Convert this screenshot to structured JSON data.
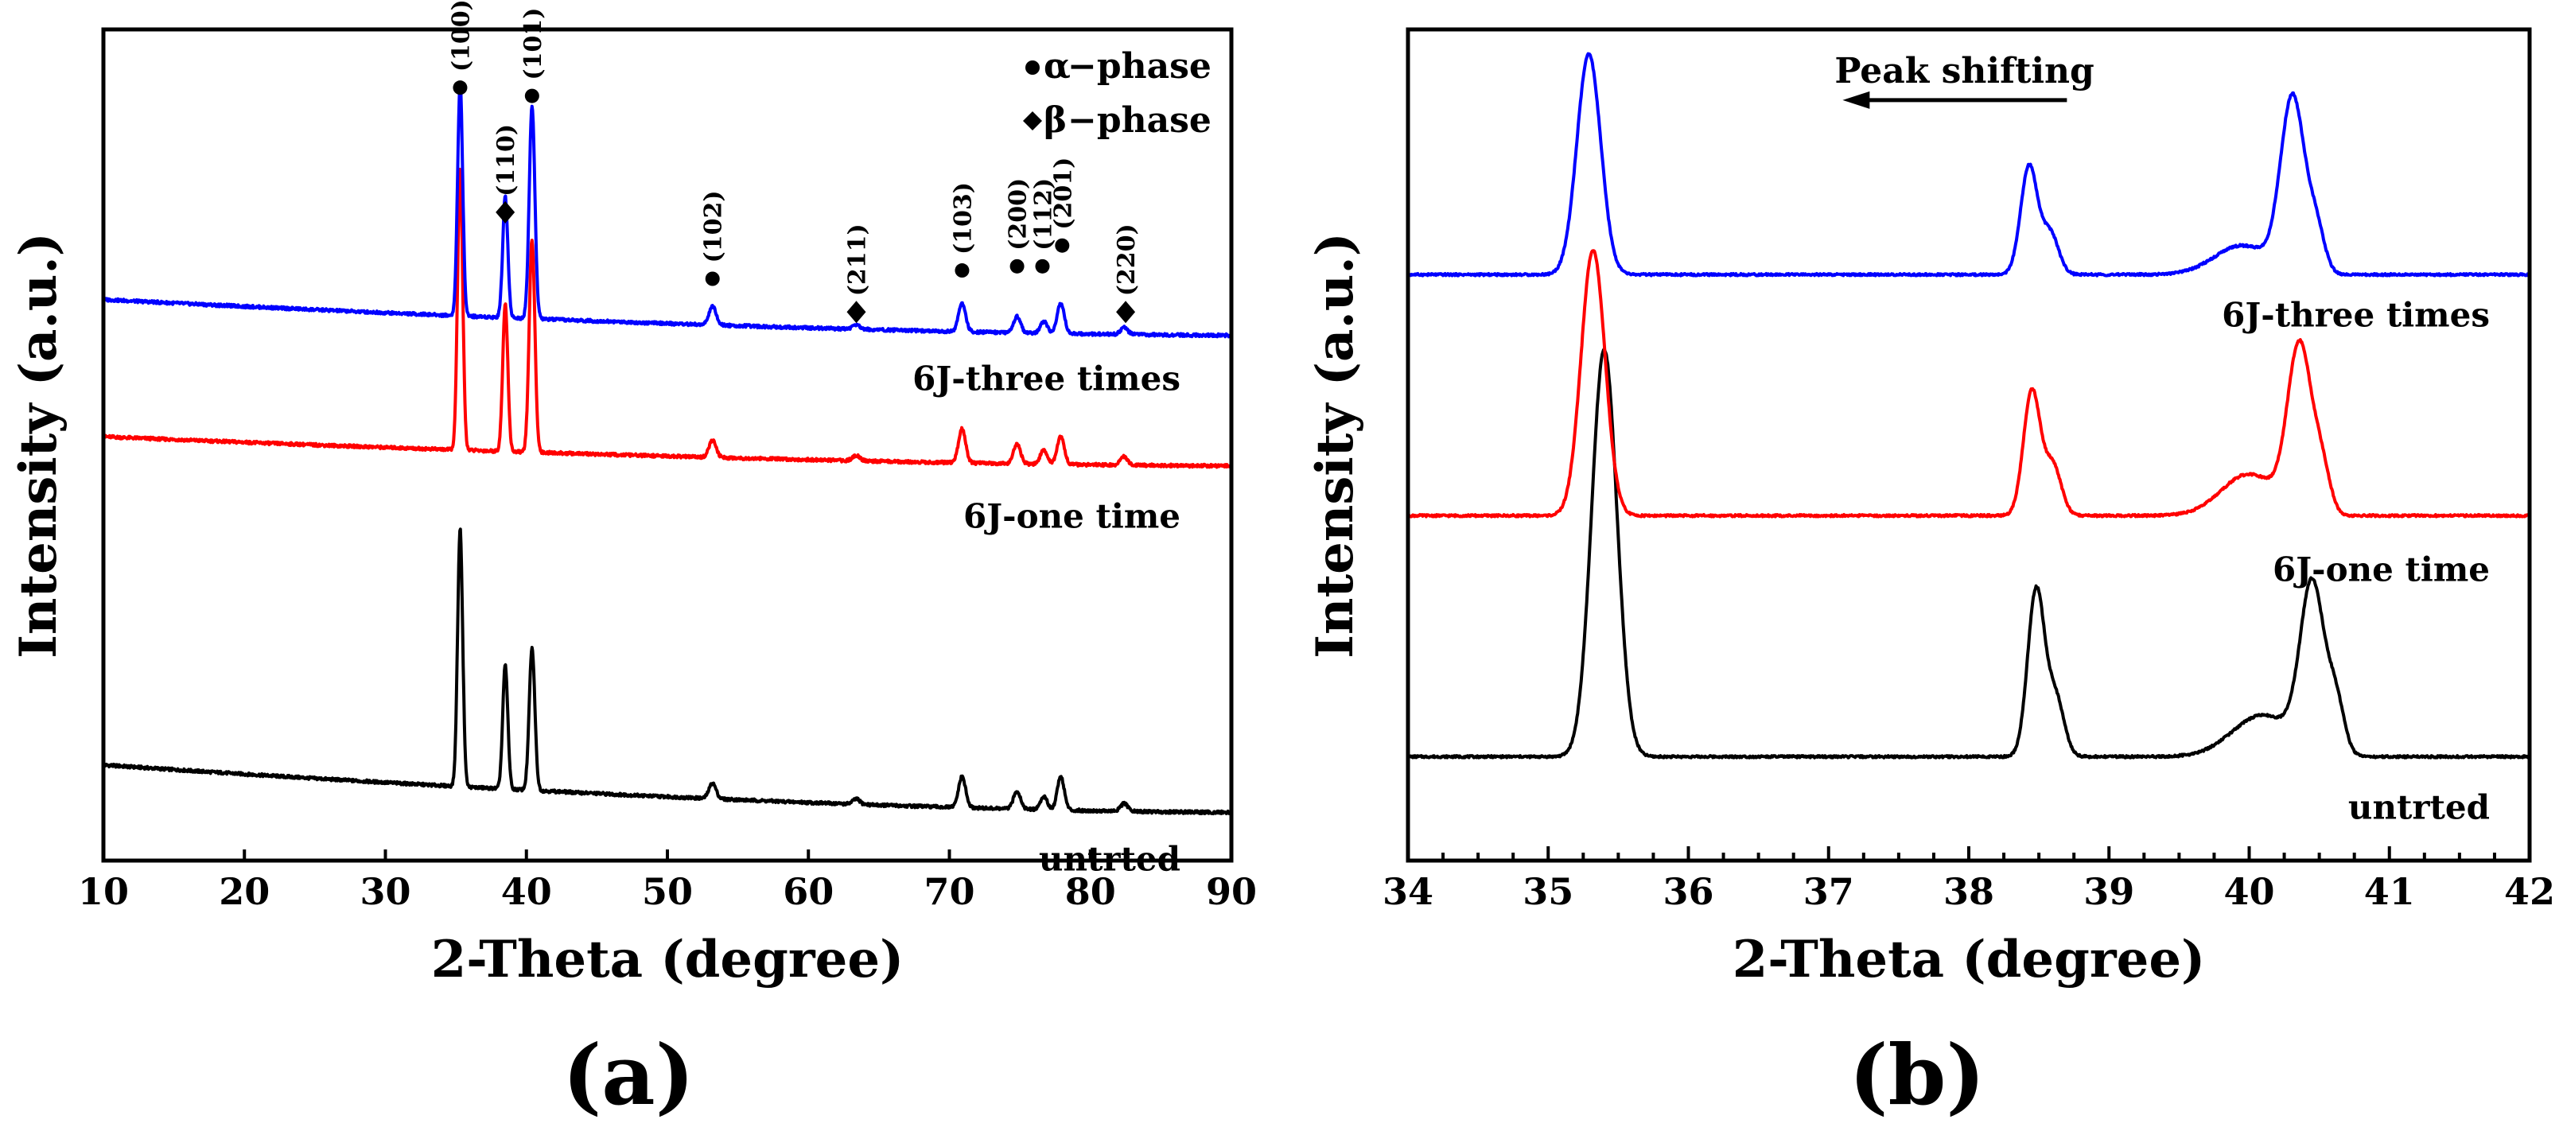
{
  "figure": {
    "panels": [
      {
        "id": "a",
        "label": "(a)"
      },
      {
        "id": "b",
        "label": "(b)"
      }
    ]
  },
  "chart_data": [
    {
      "id": "a",
      "type": "line",
      "panel_label": "(a)",
      "xlabel": "2-Theta (degree)",
      "ylabel": "Intensity (a.u.)",
      "xlim": [
        10,
        90
      ],
      "xticks": [
        10,
        20,
        30,
        40,
        50,
        60,
        70,
        80,
        90
      ],
      "ylim": [
        0,
        100
      ],
      "grid": false,
      "legend": {
        "placement": "top-right",
        "entries": [
          {
            "marker": "circle",
            "symbol": "α",
            "text": "−phase"
          },
          {
            "marker": "diamond",
            "symbol": "β",
            "text": "−phase"
          }
        ]
      },
      "peaks": [
        {
          "x": 35.3,
          "w": 0.18,
          "h": 1.0
        },
        {
          "x": 38.5,
          "w": 0.18,
          "h": 0.52
        },
        {
          "x": 40.4,
          "w": 0.2,
          "h": 0.66
        },
        {
          "x": 53.2,
          "w": 0.25,
          "h": 0.06
        },
        {
          "x": 63.4,
          "w": 0.25,
          "h": 0.02
        },
        {
          "x": 70.9,
          "w": 0.25,
          "h": 0.12
        },
        {
          "x": 74.8,
          "w": 0.25,
          "h": 0.07
        },
        {
          "x": 76.7,
          "w": 0.25,
          "h": 0.05
        },
        {
          "x": 77.9,
          "w": 0.25,
          "h": 0.13
        },
        {
          "x": 82.4,
          "w": 0.25,
          "h": 0.03
        }
      ],
      "series": [
        {
          "name": "untrted",
          "color": "#000000",
          "baseline_start": 11.5,
          "baseline_end": 5.8,
          "peak_scale": 31,
          "peak_heights": [
            1.0,
            0.48,
            0.55,
            0.06,
            0.02,
            0.12,
            0.07,
            0.05,
            0.13,
            0.03
          ]
        },
        {
          "name": "6J-one time",
          "color": "#ff0000",
          "baseline_start": 51,
          "baseline_end": 47.5,
          "peak_scale": 34,
          "peak_heights": [
            1.0,
            0.52,
            0.75,
            0.06,
            0.02,
            0.12,
            0.07,
            0.05,
            0.1,
            0.03
          ]
        },
        {
          "name": "6J-three times",
          "color": "#0000ff",
          "baseline_start": 67.5,
          "baseline_end": 63.2,
          "peak_scale": 28,
          "peak_heights": [
            1.0,
            0.52,
            0.91,
            0.08,
            0.02,
            0.12,
            0.07,
            0.05,
            0.13,
            0.03
          ]
        }
      ],
      "sample_labels": [
        {
          "text": "6J-three times",
          "series": "6J-three times"
        },
        {
          "text": "6J-one time",
          "series": "6J-one time"
        },
        {
          "text": "untrted",
          "series": "untrted"
        }
      ],
      "plane_labels": [
        {
          "text": "(100)",
          "x": 35.3,
          "y": 93,
          "marker": "circle"
        },
        {
          "text": "(110)",
          "x": 38.5,
          "y": 78,
          "marker": "diamond"
        },
        {
          "text": "(101)",
          "x": 40.4,
          "y": 92,
          "marker": "circle"
        },
        {
          "text": "(102)",
          "x": 53.2,
          "y": 70,
          "marker": "circle"
        },
        {
          "text": "(211)",
          "x": 63.4,
          "y": 66,
          "marker": "diamond"
        },
        {
          "text": "(103)",
          "x": 70.9,
          "y": 71,
          "marker": "circle"
        },
        {
          "text": "(200)",
          "x": 74.8,
          "y": 71.5,
          "marker": "circle"
        },
        {
          "text": "(112)",
          "x": 76.6,
          "y": 71.5,
          "marker": "circle"
        },
        {
          "text": "(201)",
          "x": 78.0,
          "y": 74,
          "marker": "circle"
        },
        {
          "text": "(220)",
          "x": 82.5,
          "y": 66,
          "marker": "diamond"
        }
      ]
    },
    {
      "id": "b",
      "type": "line",
      "panel_label": "(b)",
      "xlabel": "2-Theta (degree)",
      "ylabel": "Intensity (a.u.)",
      "xlim": [
        34,
        42
      ],
      "xticks": [
        34,
        35,
        36,
        37,
        38,
        39,
        40,
        41,
        42
      ],
      "minor_tick_step": 0.25,
      "ylim": [
        0,
        100
      ],
      "grid": false,
      "annotation": {
        "text": "Peak shifting",
        "arrow": "left",
        "from_x": 38.7,
        "to_x": 37.1,
        "y": 91.5
      },
      "series": [
        {
          "name": "untrted",
          "color": "#000000",
          "baseline": 12.5,
          "peaks": [
            {
              "x": 35.4,
              "w": 0.09,
              "h": 49
            },
            {
              "x": 38.48,
              "w": 0.06,
              "h": 20
            },
            {
              "x": 38.62,
              "w": 0.06,
              "h": 7
            },
            {
              "x": 40.45,
              "w": 0.085,
              "h": 20
            },
            {
              "x": 40.1,
              "w": 0.22,
              "h": 5
            },
            {
              "x": 40.62,
              "w": 0.06,
              "h": 6
            }
          ]
        },
        {
          "name": "6J-one time",
          "color": "#ff0000",
          "baseline": 41.5,
          "peaks": [
            {
              "x": 35.32,
              "w": 0.085,
              "h": 32
            },
            {
              "x": 38.45,
              "w": 0.06,
              "h": 15
            },
            {
              "x": 38.6,
              "w": 0.06,
              "h": 6
            },
            {
              "x": 40.36,
              "w": 0.085,
              "h": 20
            },
            {
              "x": 40.0,
              "w": 0.2,
              "h": 5
            },
            {
              "x": 40.52,
              "w": 0.06,
              "h": 5
            }
          ]
        },
        {
          "name": "6J-three times",
          "color": "#0000ff",
          "baseline": 70.5,
          "peaks": [
            {
              "x": 35.29,
              "w": 0.085,
              "h": 26.5
            },
            {
              "x": 38.43,
              "w": 0.06,
              "h": 13
            },
            {
              "x": 38.58,
              "w": 0.06,
              "h": 5
            },
            {
              "x": 40.31,
              "w": 0.085,
              "h": 21
            },
            {
              "x": 39.95,
              "w": 0.2,
              "h": 3.5
            },
            {
              "x": 40.48,
              "w": 0.06,
              "h": 5
            }
          ]
        }
      ],
      "sample_labels": [
        {
          "text": "6J-three times",
          "series": "6J-three times"
        },
        {
          "text": "6J-one time",
          "series": "6J-one time"
        },
        {
          "text": "untrted",
          "series": "untrted"
        }
      ]
    }
  ]
}
